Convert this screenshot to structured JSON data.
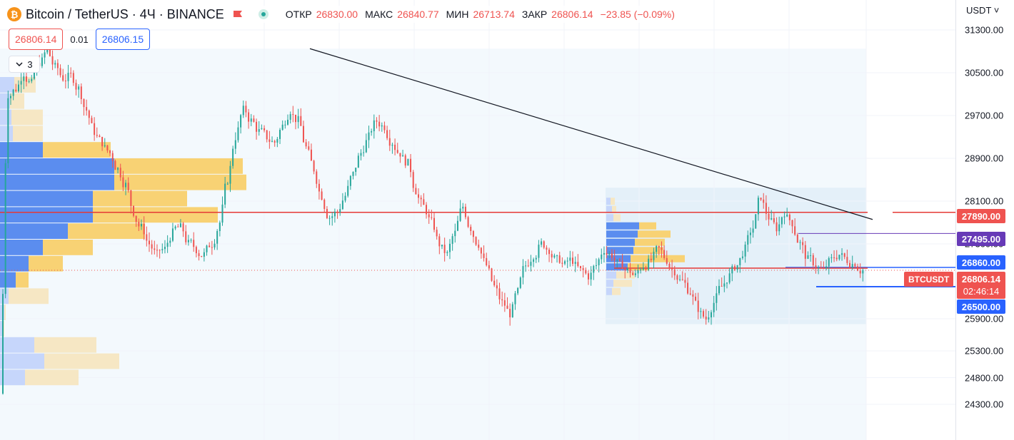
{
  "header": {
    "symbol": "Bitcoin / TetherUS · 4Ч · BINANCE",
    "logo_letter": "₿",
    "ohlc": [
      {
        "label": "ОТКР",
        "value": "26830.00"
      },
      {
        "label": "МАКС",
        "value": "26840.77"
      },
      {
        "label": "МИН",
        "value": "26713.74"
      },
      {
        "label": "ЗАКР",
        "value": "26806.14"
      }
    ],
    "change": "−23.85 (−0.09%)"
  },
  "quote": {
    "sell": "26806.14",
    "spread": "0.01",
    "buy": "26806.15"
  },
  "indicators_toggle": {
    "count": "3"
  },
  "price_scale": {
    "currency": "USDT",
    "ticks": [
      "31300.00",
      "30500.00",
      "29700.00",
      "28900.00",
      "28100.00",
      "27300.00",
      "25900.00",
      "25300.00",
      "24800.00",
      "24300.00"
    ],
    "levels": [
      {
        "label": "27890.00",
        "color": "#ef5350",
        "value": 27890
      },
      {
        "label": "27495.00",
        "color": "#673ab7",
        "value": 27495
      },
      {
        "label": "26860.00",
        "color": "#2962ff",
        "value": 26860
      },
      {
        "label": "26500.00",
        "color": "#2962ff",
        "value": 26500
      }
    ],
    "last_price": "26806.14",
    "countdown": "02:46:14",
    "last_symbol_tag": "BTCUSDT"
  },
  "chart_data": {
    "type": "candlestick",
    "symbol": "BTCUSDT",
    "interval": "4h",
    "ylim": [
      24200,
      31500
    ],
    "last_price": 26806.14,
    "open": 26830.0,
    "high": 26840.77,
    "low": 26713.74,
    "close": 26806.14,
    "horizontal_levels": [
      27890,
      27495,
      26860,
      26500
    ],
    "trendline": {
      "from_price": 30950,
      "to_price": 27850,
      "shape": "descending resistance"
    },
    "volume_profiles": [
      {
        "range": "full period",
        "price_low": 24300,
        "price_high": 30950
      },
      {
        "range": "recent",
        "price_low": 25800,
        "price_high": 28350
      }
    ],
    "candle_path": [
      30100,
      30200,
      30500,
      30300,
      30700,
      30900,
      30600,
      30400,
      30450,
      30200,
      29800,
      29400,
      29200,
      29000,
      28700,
      28400,
      27900,
      27600,
      27300,
      27100,
      27200,
      27500,
      27600,
      27300,
      27200,
      27100,
      27300,
      27700,
      28500,
      29300,
      29800,
      29600,
      29400,
      29300,
      29200,
      29500,
      29800,
      29600,
      29100,
      28700,
      28200,
      27800,
      27900,
      28200,
      28600,
      29000,
      29300,
      29600,
      29500,
      29200,
      29000,
      28800,
      28300,
      28000,
      27700,
      27300,
      27100,
      27500,
      28000,
      27600,
      27300,
      26900,
      26500,
      26200,
      26000,
      26400,
      26900,
      27100,
      27300,
      27200,
      27000,
      26900,
      27000,
      26800,
      26700,
      26900,
      27200,
      27100,
      26900,
      26800,
      26700,
      26900,
      27000,
      27200,
      27000,
      26800,
      26600,
      26400,
      26100,
      25900,
      26200,
      26500,
      26700,
      26900,
      27200,
      27600,
      28200,
      27800,
      27600,
      27900,
      27700,
      27300,
      27000,
      26900,
      26800,
      27000,
      27100,
      27000,
      26950,
      26806.14
    ]
  }
}
